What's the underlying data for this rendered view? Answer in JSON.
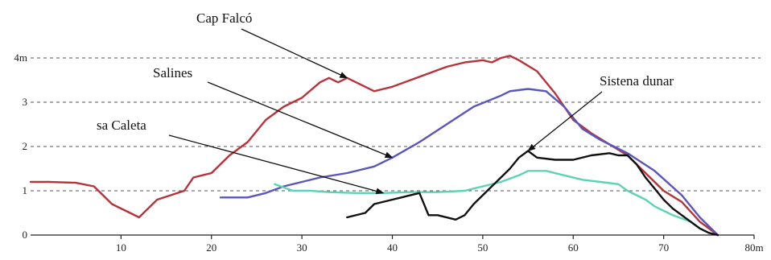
{
  "chart_data": {
    "type": "line",
    "title": "",
    "xlabel": "",
    "ylabel": "",
    "xlim": [
      0,
      80
    ],
    "ylim": [
      0,
      4.2
    ],
    "grid": "dashed horizontal at y=1,2,3,4",
    "x_ticks": [
      {
        "value": 10,
        "label": "10"
      },
      {
        "value": 20,
        "label": "20"
      },
      {
        "value": 30,
        "label": "30"
      },
      {
        "value": 40,
        "label": "40"
      },
      {
        "value": 50,
        "label": "50"
      },
      {
        "value": 60,
        "label": "60"
      },
      {
        "value": 70,
        "label": "70"
      },
      {
        "value": 80,
        "label": "80m"
      }
    ],
    "y_ticks": [
      {
        "value": 0,
        "label": "0"
      },
      {
        "value": 1,
        "label": "1"
      },
      {
        "value": 2,
        "label": "2"
      },
      {
        "value": 3,
        "label": "3"
      },
      {
        "value": 4,
        "label": "4m"
      }
    ],
    "series": [
      {
        "name": "Cap Falcó",
        "color": "#b8323a",
        "x": [
          0,
          2,
          5,
          7,
          9,
          11,
          12,
          14,
          17,
          18,
          20,
          22,
          24,
          26,
          28,
          30,
          32,
          33,
          34,
          35,
          37,
          38,
          39,
          40,
          42,
          44,
          46,
          48,
          50,
          51,
          52,
          53,
          54,
          56,
          58,
          60,
          62,
          64,
          66,
          68,
          70,
          72,
          74,
          76
        ],
        "y": [
          1.2,
          1.2,
          1.18,
          1.1,
          0.7,
          0.5,
          0.4,
          0.8,
          1.0,
          1.3,
          1.4,
          1.8,
          2.1,
          2.6,
          2.9,
          3.1,
          3.45,
          3.55,
          3.45,
          3.55,
          3.35,
          3.25,
          3.3,
          3.35,
          3.5,
          3.65,
          3.8,
          3.9,
          3.95,
          3.9,
          4.0,
          4.05,
          3.95,
          3.7,
          3.2,
          2.6,
          2.3,
          2.05,
          1.8,
          1.4,
          1.0,
          0.75,
          0.3,
          0.0
        ]
      },
      {
        "name": "Salines",
        "color": "#5a55bd",
        "x": [
          21,
          24,
          26,
          28,
          30,
          32,
          35,
          38,
          40,
          43,
          46,
          49,
          52,
          53,
          55,
          57,
          59,
          61,
          63,
          66,
          69,
          72,
          74,
          76
        ],
        "y": [
          0.85,
          0.85,
          0.95,
          1.1,
          1.2,
          1.3,
          1.4,
          1.55,
          1.75,
          2.1,
          2.5,
          2.9,
          3.15,
          3.25,
          3.3,
          3.25,
          2.9,
          2.4,
          2.15,
          1.85,
          1.45,
          0.9,
          0.4,
          0.0
        ]
      },
      {
        "name": "sa Caleta",
        "color": "#5cd3b6",
        "x": [
          27,
          29,
          31,
          33,
          36,
          39,
          42,
          45,
          48,
          50,
          52,
          54,
          55,
          57,
          59,
          61,
          63,
          65,
          66,
          67,
          68,
          69,
          70,
          71,
          73,
          74,
          75
        ],
        "y": [
          1.15,
          1.0,
          1.0,
          0.97,
          0.95,
          0.95,
          0.97,
          0.97,
          1.0,
          1.1,
          1.2,
          1.35,
          1.45,
          1.45,
          1.35,
          1.25,
          1.2,
          1.15,
          1.0,
          0.9,
          0.8,
          0.65,
          0.55,
          0.45,
          0.3,
          0.15,
          0.05
        ]
      },
      {
        "name": "Sistena dunar",
        "color": "#111111",
        "x": [
          35,
          37,
          38,
          40,
          41,
          43,
          44,
          45,
          47,
          48,
          49,
          51,
          52,
          53,
          54,
          55,
          56,
          58,
          60,
          62,
          64,
          65,
          66,
          67,
          68,
          69,
          70,
          71,
          72,
          73,
          74,
          75,
          76
        ],
        "y": [
          0.4,
          0.5,
          0.7,
          0.8,
          0.85,
          0.95,
          0.45,
          0.45,
          0.35,
          0.45,
          0.7,
          1.1,
          1.3,
          1.5,
          1.75,
          1.9,
          1.75,
          1.7,
          1.7,
          1.8,
          1.85,
          1.8,
          1.8,
          1.6,
          1.3,
          1.05,
          0.8,
          0.6,
          0.45,
          0.3,
          0.15,
          0.05,
          0.0
        ]
      }
    ],
    "annotations": [
      {
        "text": "Cap Falcó",
        "series": "Cap Falcó",
        "points_to": [
          35,
          3.55
        ]
      },
      {
        "text": "Salines",
        "series": "Salines",
        "points_to": [
          40,
          1.75
        ]
      },
      {
        "text": "sa Caleta",
        "series": "sa Caleta",
        "points_to": [
          39,
          0.95
        ]
      },
      {
        "text": "Sistena dunar",
        "series": "Sistena dunar",
        "points_to": [
          55,
          1.9
        ]
      }
    ]
  }
}
